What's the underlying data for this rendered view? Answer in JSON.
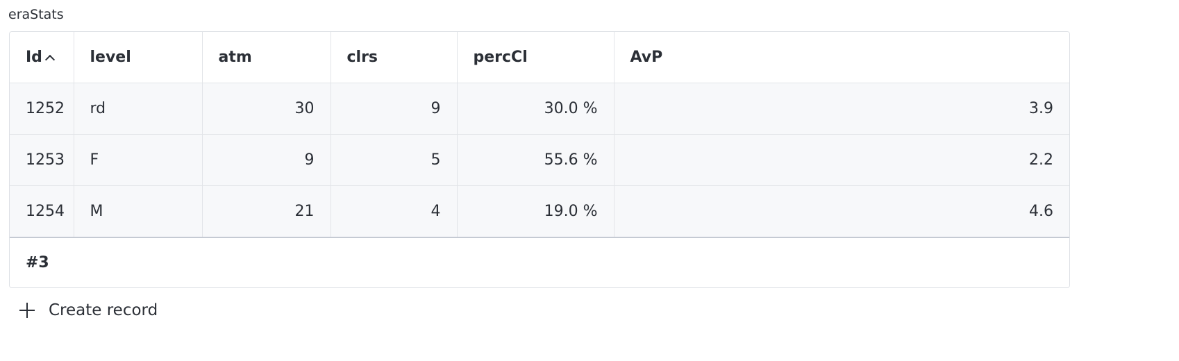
{
  "title": "eraStats",
  "table": {
    "headers": [
      "Id",
      "level",
      "atm",
      "clrs",
      "percCl",
      "AvP"
    ],
    "rows": [
      [
        1252,
        "rd",
        30,
        9,
        "30.0 %",
        3.9
      ],
      [
        1253,
        "F",
        9,
        5,
        "55.6 %",
        2.2
      ],
      [
        1254,
        "M",
        21,
        4,
        "19.0 %",
        4.6
      ]
    ],
    "footer": "#3"
  },
  "create_button": "Create record"
}
